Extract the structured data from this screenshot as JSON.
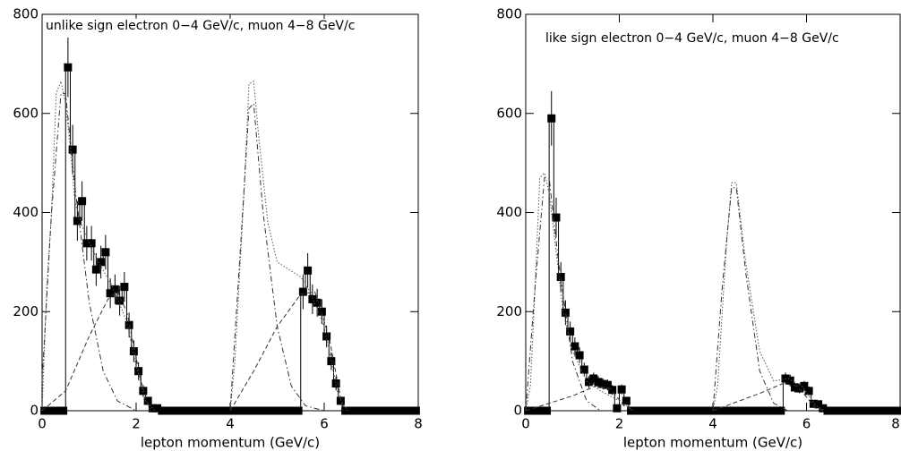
{
  "chart_data": [
    {
      "type": "scatter",
      "title": "unlike sign electron 0−4 GeV/c, muon 4−8 GeV/c",
      "x_label": "lepton momentum (GeV/c)",
      "xlim": [
        0,
        8
      ],
      "ylim": [
        0,
        800
      ],
      "xticks": [
        0,
        2,
        4,
        6,
        8
      ],
      "yticks": [
        0,
        200,
        400,
        600,
        800
      ],
      "series": [
        {
          "style": "points",
          "color": "#000000",
          "x": [
            0.05,
            0.15,
            0.25,
            0.35,
            0.45,
            0.55,
            0.65,
            0.75,
            0.85,
            0.95,
            1.05,
            1.15,
            1.25,
            1.35,
            1.45,
            1.55,
            1.65,
            1.75,
            1.85,
            1.95,
            2.05,
            2.15,
            2.25,
            2.35,
            2.45,
            2.55,
            2.65,
            2.75,
            2.85,
            2.95,
            3.05,
            3.15,
            3.25,
            3.35,
            3.45,
            3.55,
            3.65,
            3.75,
            3.85,
            3.95,
            4.05,
            4.15,
            4.25,
            4.35,
            4.45,
            4.55,
            4.65,
            4.75,
            4.85,
            4.95,
            5.05,
            5.15,
            5.25,
            5.35,
            5.45,
            5.55,
            5.65,
            5.75,
            5.85,
            5.95,
            6.05,
            6.15,
            6.25,
            6.35,
            6.45,
            6.55,
            6.65,
            6.75,
            6.85,
            6.95,
            7.05,
            7.15,
            7.25,
            7.35,
            7.45,
            7.55,
            7.65,
            7.75,
            7.85,
            7.95
          ],
          "values": [
            0,
            0,
            0,
            0,
            0,
            693,
            527,
            383,
            423,
            338,
            338,
            285,
            300,
            320,
            237,
            245,
            222,
            250,
            173,
            120,
            80,
            40,
            20,
            5,
            5,
            0,
            0,
            0,
            0,
            0,
            0,
            0,
            0,
            0,
            0,
            0,
            0,
            0,
            0,
            0,
            0,
            0,
            0,
            0,
            0,
            0,
            0,
            0,
            0,
            0,
            0,
            0,
            0,
            0,
            0,
            240,
            283,
            225,
            218,
            200,
            150,
            100,
            55,
            20,
            0,
            0,
            0,
            0,
            0,
            0,
            0,
            0,
            0,
            0,
            0,
            0,
            0,
            0,
            0,
            0
          ],
          "errors": [
            0,
            0,
            0,
            0,
            0,
            60,
            50,
            40,
            40,
            35,
            35,
            33,
            33,
            35,
            30,
            30,
            30,
            30,
            25,
            22,
            18,
            12,
            8,
            4,
            4,
            0,
            0,
            0,
            0,
            0,
            0,
            0,
            0,
            0,
            0,
            0,
            0,
            0,
            0,
            0,
            0,
            0,
            0,
            0,
            0,
            0,
            0,
            0,
            0,
            0,
            0,
            0,
            0,
            0,
            0,
            35,
            35,
            30,
            28,
            25,
            22,
            18,
            14,
            8,
            0,
            0,
            0,
            0,
            0,
            0,
            0,
            0,
            0,
            0,
            0,
            0,
            0,
            0,
            0,
            0
          ]
        },
        {
          "style": "dotted",
          "color": "#555555",
          "x": [
            0,
            0.1,
            0.2,
            0.3,
            0.4,
            0.5,
            0.6,
            0.7,
            0.9,
            1.2,
            1.5,
            1.8,
            2.0,
            2.2,
            2.4,
            3.2,
            4.0,
            4.1,
            4.3,
            4.4,
            4.5,
            4.6,
            4.8,
            5.0,
            5.5,
            5.7,
            6.0,
            6.3,
            6.5
          ],
          "values": [
            0,
            250,
            400,
            640,
            665,
            620,
            530,
            420,
            360,
            300,
            250,
            180,
            90,
            20,
            0,
            null,
            0,
            100,
            450,
            660,
            665,
            560,
            380,
            300,
            270,
            240,
            170,
            30,
            0
          ]
        },
        {
          "style": "dashdot",
          "color": "#333333",
          "x": [
            0,
            0.2,
            0.4,
            0.5,
            0.7,
            1.0,
            1.3,
            1.6,
            2.0,
            3.0,
            4.0,
            4.2,
            4.4,
            4.5,
            4.7,
            5.0,
            5.3,
            5.6,
            6.0
          ],
          "values": [
            60,
            400,
            640,
            640,
            450,
            220,
            80,
            20,
            0,
            null,
            0,
            300,
            610,
            620,
            400,
            170,
            50,
            10,
            0
          ]
        },
        {
          "style": "dashed",
          "color": "#333333",
          "x": [
            0,
            0.5,
            1.0,
            1.4,
            1.6,
            1.8,
            2.1,
            2.3,
            3.0,
            4.0,
            4.5,
            5.0,
            5.5,
            5.8,
            6.1,
            6.4
          ],
          "values": [
            0,
            40,
            150,
            225,
            240,
            200,
            60,
            0,
            null,
            0,
            80,
            170,
            235,
            240,
            150,
            0
          ]
        }
      ]
    },
    {
      "type": "scatter",
      "title": "like sign electron 0−4 GeV/c, muon 4−8 GeV/c",
      "x_label": "lepton momentum (GeV/c)",
      "xlim": [
        0,
        8
      ],
      "ylim": [
        0,
        800
      ],
      "xticks": [
        0,
        2,
        4,
        6,
        8
      ],
      "yticks": [
        0,
        200,
        400,
        600,
        800
      ],
      "series": [
        {
          "style": "points",
          "color": "#000000",
          "x": [
            0.05,
            0.15,
            0.25,
            0.35,
            0.45,
            0.55,
            0.65,
            0.75,
            0.85,
            0.95,
            1.05,
            1.15,
            1.25,
            1.35,
            1.45,
            1.55,
            1.65,
            1.75,
            1.85,
            1.95,
            2.05,
            2.15,
            2.25,
            2.35,
            2.45,
            2.55,
            2.65,
            2.75,
            2.85,
            2.95,
            3.05,
            3.15,
            3.25,
            3.35,
            3.45,
            3.55,
            3.65,
            3.75,
            3.85,
            3.95,
            4.05,
            4.15,
            4.25,
            4.35,
            4.45,
            4.55,
            4.65,
            4.75,
            4.85,
            4.95,
            5.05,
            5.15,
            5.25,
            5.35,
            5.45,
            5.55,
            5.65,
            5.75,
            5.85,
            5.95,
            6.05,
            6.15,
            6.25,
            6.35,
            6.45,
            6.55,
            6.65,
            6.75,
            6.85,
            6.95,
            7.05,
            7.15,
            7.25,
            7.35,
            7.45,
            7.55,
            7.65,
            7.75,
            7.85,
            7.95
          ],
          "values": [
            0,
            0,
            0,
            0,
            0,
            590,
            390,
            270,
            198,
            160,
            130,
            112,
            83,
            58,
            65,
            58,
            54,
            52,
            42,
            5,
            43,
            20,
            0,
            0,
            0,
            0,
            0,
            0,
            0,
            0,
            0,
            0,
            0,
            0,
            0,
            0,
            0,
            0,
            0,
            0,
            0,
            0,
            0,
            0,
            0,
            0,
            0,
            0,
            0,
            0,
            0,
            0,
            0,
            0,
            0,
            65,
            61,
            47,
            45,
            50,
            40,
            14,
            13,
            5,
            0,
            0,
            0,
            0,
            0,
            0,
            0,
            0,
            0,
            0,
            0,
            0,
            0,
            0,
            0,
            0
          ],
          "errors": [
            0,
            0,
            0,
            0,
            0,
            55,
            40,
            30,
            25,
            20,
            18,
            16,
            14,
            12,
            12,
            12,
            11,
            11,
            10,
            4,
            10,
            7,
            0,
            0,
            0,
            0,
            0,
            0,
            0,
            0,
            0,
            0,
            0,
            0,
            0,
            0,
            0,
            0,
            0,
            0,
            0,
            0,
            0,
            0,
            0,
            0,
            0,
            0,
            0,
            0,
            0,
            0,
            0,
            0,
            0,
            12,
            12,
            10,
            10,
            10,
            9,
            6,
            5,
            3,
            0,
            0,
            0,
            0,
            0,
            0,
            0,
            0,
            0,
            0,
            0,
            0,
            0,
            0,
            0,
            0
          ]
        },
        {
          "style": "dotted",
          "color": "#555555",
          "x": [
            0,
            0.1,
            0.2,
            0.3,
            0.4,
            0.5,
            0.6,
            0.8,
            1.0,
            1.3,
            1.6,
            2.0,
            2.3,
            3.2,
            4.0,
            4.1,
            4.3,
            4.4,
            4.5,
            4.7,
            5.0,
            5.3,
            5.6,
            5.9,
            6.2,
            6.4
          ],
          "values": [
            0,
            50,
            250,
            470,
            480,
            440,
            360,
            200,
            120,
            60,
            40,
            20,
            0,
            null,
            0,
            50,
            350,
            460,
            460,
            300,
            120,
            60,
            65,
            50,
            10,
            0
          ]
        },
        {
          "style": "dashdot",
          "color": "#333333",
          "x": [
            0,
            0.2,
            0.4,
            0.5,
            0.7,
            1.0,
            1.3,
            1.6,
            3.0,
            4.0,
            4.2,
            4.4,
            4.5,
            4.7,
            5.0,
            5.3,
            5.6
          ],
          "values": [
            0,
            250,
            470,
            470,
            300,
            100,
            20,
            0,
            null,
            0,
            250,
            450,
            450,
            280,
            80,
            15,
            0
          ]
        },
        {
          "style": "dashed",
          "color": "#333333",
          "x": [
            0,
            1.0,
            1.5,
            1.8,
            2.1,
            2.3,
            3.0,
            4.0,
            5.0,
            5.5,
            5.8,
            6.2,
            6.4
          ],
          "values": [
            0,
            30,
            50,
            45,
            10,
            0,
            null,
            0,
            35,
            55,
            50,
            5,
            0
          ]
        }
      ]
    }
  ]
}
